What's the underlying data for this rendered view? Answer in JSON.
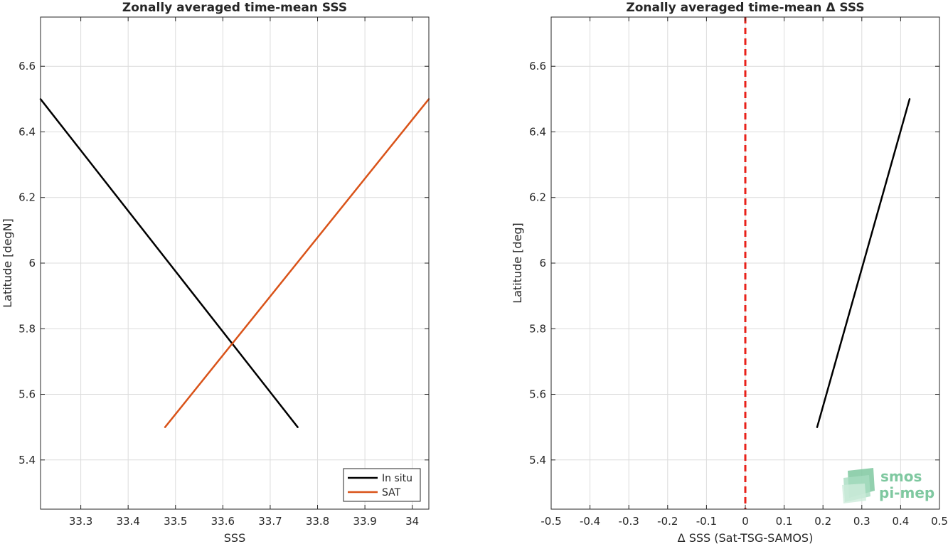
{
  "chart_data": [
    {
      "type": "line",
      "title": "Zonally averaged time-mean SSS",
      "xlabel": "SSS",
      "ylabel": "Latitude [degN]",
      "xlim": [
        33.215,
        34.035
      ],
      "ylim": [
        5.25,
        6.75
      ],
      "xticks": [
        "33.3",
        "33.4",
        "33.5",
        "33.6",
        "33.7",
        "33.8",
        "33.9",
        "34"
      ],
      "xtick_values": [
        33.3,
        33.4,
        33.5,
        33.6,
        33.7,
        33.8,
        33.9,
        34.0
      ],
      "yticks": [
        "5.4",
        "5.6",
        "5.8",
        "6",
        "6.2",
        "6.4",
        "6.6"
      ],
      "ytick_values": [
        5.4,
        5.6,
        5.8,
        6.0,
        6.2,
        6.4,
        6.6
      ],
      "grid": true,
      "legend_position": "bottom-right",
      "series": [
        {
          "name": "In situ",
          "color": "#000000",
          "x": [
            33.215,
            33.758
          ],
          "y": [
            6.5,
            5.5
          ]
        },
        {
          "name": "SAT",
          "color": "#d95319",
          "x": [
            33.478,
            34.035
          ],
          "y": [
            5.5,
            6.5
          ]
        }
      ]
    },
    {
      "type": "line",
      "title": "Zonally averaged time-mean Δ SSS",
      "xlabel": "Δ SSS (Sat-TSG-SAMOS)",
      "ylabel": "Latitude [deg]",
      "xlim": [
        -0.5,
        0.5
      ],
      "ylim": [
        5.25,
        6.75
      ],
      "xticks": [
        "-0.5",
        "-0.4",
        "-0.3",
        "-0.2",
        "-0.1",
        "0",
        "0.1",
        "0.2",
        "0.3",
        "0.4",
        "0.5"
      ],
      "xtick_values": [
        -0.5,
        -0.4,
        -0.3,
        -0.2,
        -0.1,
        0.0,
        0.1,
        0.2,
        0.3,
        0.4,
        0.5
      ],
      "yticks": [
        "5.4",
        "5.6",
        "5.8",
        "6",
        "6.2",
        "6.4",
        "6.6"
      ],
      "ytick_values": [
        5.4,
        5.6,
        5.8,
        6.0,
        6.2,
        6.4,
        6.6
      ],
      "grid": true,
      "reference_line": {
        "x": 0,
        "color": "#e8211a",
        "style": "dashed"
      },
      "series": [
        {
          "color": "#000000",
          "x": [
            0.185,
            0.423
          ],
          "y": [
            5.5,
            6.5
          ]
        }
      ]
    }
  ],
  "logo": {
    "line1": "smos",
    "line2": "pi-mep"
  }
}
